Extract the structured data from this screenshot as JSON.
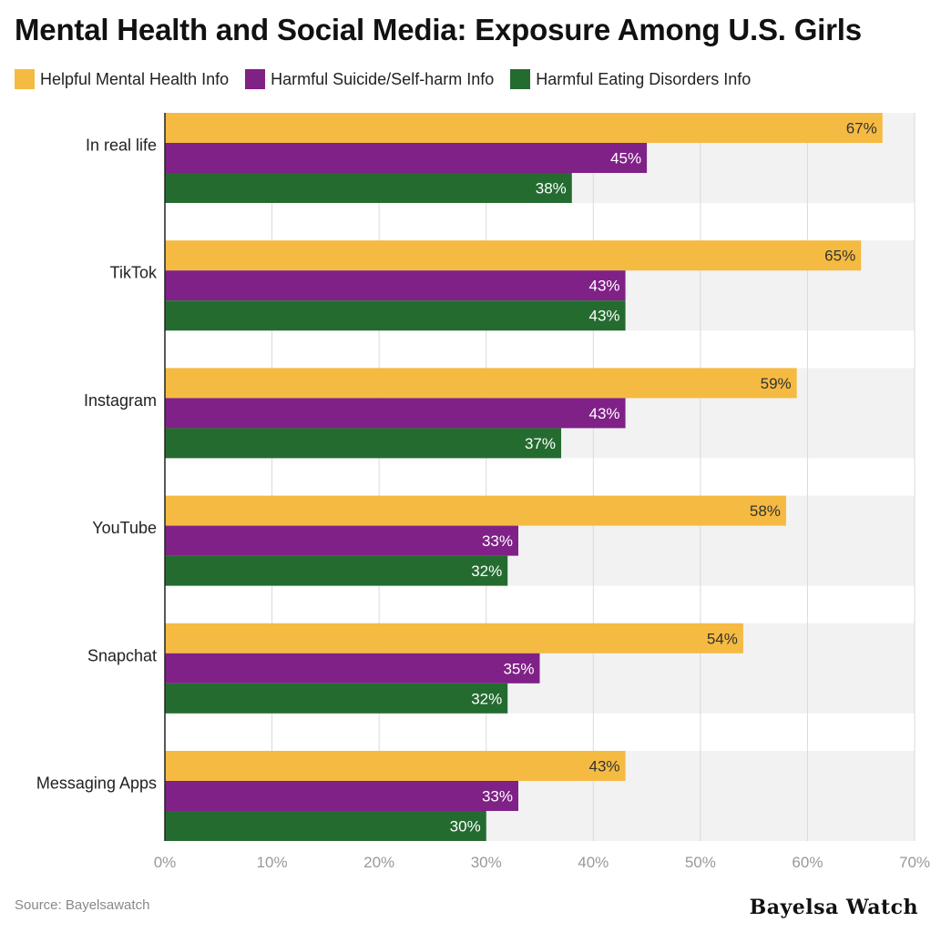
{
  "chart_data": {
    "type": "bar",
    "orientation": "horizontal",
    "title": "Mental Health and Social Media: Exposure Among U.S. Girls",
    "categories": [
      "In real life",
      "TikTok",
      "Instagram",
      "YouTube",
      "Snapchat",
      "Messaging Apps"
    ],
    "series": [
      {
        "name": "Helpful Mental Health Info",
        "color": "#F5BA41",
        "label_color": "#333333",
        "values": [
          67,
          65,
          59,
          58,
          54,
          43
        ]
      },
      {
        "name": "Harmful Suicide/Self-harm Info",
        "color": "#7F2187",
        "label_color": "#ffffff",
        "values": [
          45,
          43,
          43,
          33,
          35,
          33
        ]
      },
      {
        "name": "Harmful Eating Disorders Info",
        "color": "#246B30",
        "label_color": "#ffffff",
        "values": [
          38,
          43,
          37,
          32,
          32,
          30
        ]
      }
    ],
    "xlim": [
      0,
      70
    ],
    "x_ticks": [
      "0%",
      "10%",
      "20%",
      "30%",
      "40%",
      "50%",
      "60%",
      "70%"
    ],
    "value_suffix": "%",
    "grid": true,
    "legend_position": "top-left",
    "band_color": "#F2F2F2"
  },
  "footer": {
    "source": "Source: Bayelsawatch",
    "brand": "Bayelsa Watch"
  }
}
